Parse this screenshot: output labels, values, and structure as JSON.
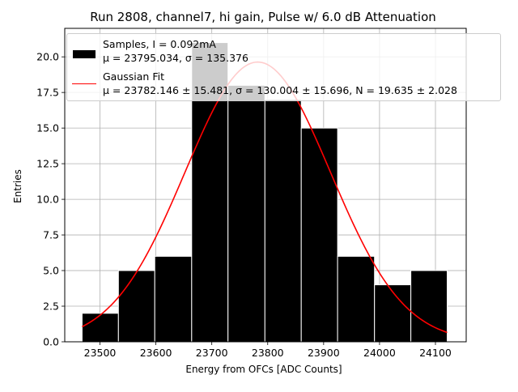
{
  "chart_data": {
    "type": "bar",
    "title": "Run 2808, channel7, hi gain, Pulse w/ 6.0 dB Attenuation",
    "xlabel": "Energy from OFCs [ADC Counts]",
    "ylabel": "Entries",
    "xlim": [
      23437,
      24155
    ],
    "ylim": [
      0,
      22
    ],
    "x_ticks": [
      "23500",
      "23600",
      "23700",
      "23800",
      "23900",
      "24000",
      "24100"
    ],
    "y_ticks": [
      "0.0",
      "2.5",
      "5.0",
      "7.5",
      "10.0",
      "12.5",
      "15.0",
      "17.5",
      "20.0"
    ],
    "grid": true,
    "legend_position": "top-right",
    "bin_edges": [
      23468,
      23533,
      23598,
      23664,
      23729,
      23795,
      23860,
      23925,
      23991,
      24056,
      24121
    ],
    "values": [
      2,
      5,
      6,
      21,
      18,
      17,
      15,
      6,
      4,
      5
    ],
    "bar_color": "#000000",
    "bar_edge_color": "#ffffff",
    "fit": {
      "mu": 23782.146,
      "sigma": 130.004,
      "N": 19.635,
      "bin_width": 65.3,
      "x_range": [
        23468,
        24121
      ],
      "color": "#ff0000"
    },
    "series": [
      {
        "name": "Samples, I = 0.092mA",
        "stats_label": "μ = 23795.034, σ = 135.376"
      },
      {
        "name": "Gaussian Fit",
        "stats_label": "μ = 23782.146 ± 15.481, σ = 130.004 ± 15.696, N = 19.635 ± 2.028"
      }
    ]
  }
}
